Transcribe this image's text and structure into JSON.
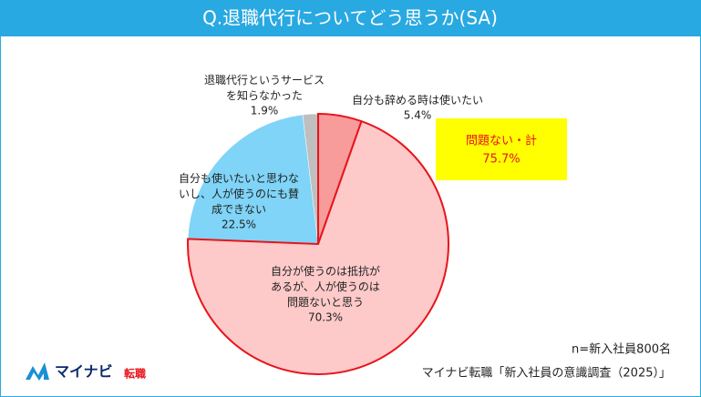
{
  "chart_data": {
    "type": "pie",
    "title": "Q.退職代行についてどう思うか(SA)",
    "categories": [
      "自分も辞める時は使いたい",
      "自分が使うのは抵抗が\nあるが、人が使うのは\n問題ないと思う",
      "自分も使いたいと思わな\nいし、人が使うのにも賛\n成できない",
      "退職代行というサービス\nを知らなかった"
    ],
    "values": [
      5.4,
      70.3,
      22.5,
      1.9
    ],
    "value_labels": [
      "5.4%",
      "70.3%",
      "22.5%",
      "1.9%"
    ],
    "colors": [
      "#f79b9b",
      "#fdc9c9",
      "#7fd4f7",
      "#bfbfbf"
    ],
    "highlight_color": "#e8141b",
    "annotation": {
      "label": "問題ない・計",
      "value": 75.7,
      "value_label": "75.7%"
    },
    "note": "n=新入社員800名",
    "source": "マイナビ転職「新入社員の意識調査（2025）」",
    "logo": {
      "name": "マイナビ",
      "sub": "転職"
    }
  }
}
